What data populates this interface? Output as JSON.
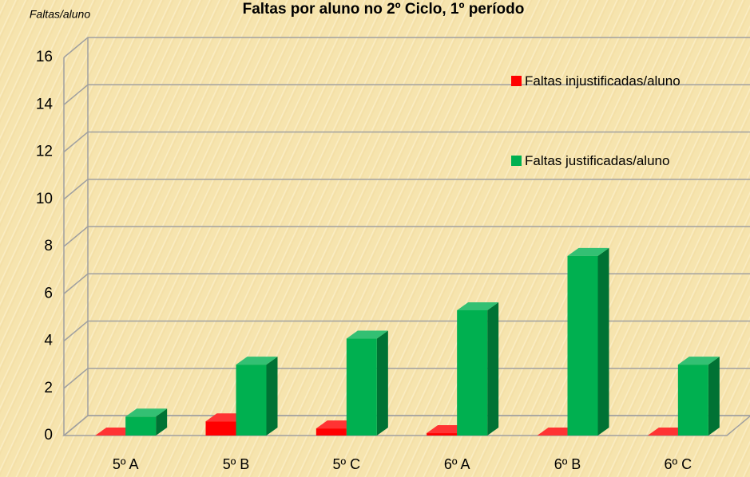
{
  "chart_data": {
    "type": "bar3d",
    "title": "Faltas por aluno no 2º Ciclo, 1º período",
    "y_label": "Faltas/aluno",
    "categories": [
      "5º A",
      "5º B",
      "5º C",
      "6º A",
      "6º B",
      "6º C"
    ],
    "series": [
      {
        "name": "Faltas injustificadas/aluno",
        "color": "#ff0000",
        "values": [
          0,
          0.6,
          0.3,
          0.1,
          0,
          0
        ]
      },
      {
        "name": "Faltas justificadas/aluno",
        "color": "#00b050",
        "values": [
          0.8,
          3.0,
          4.1,
          5.3,
          7.6,
          3.0
        ]
      }
    ],
    "ylim": [
      0,
      16
    ],
    "yticks": [
      0,
      2,
      4,
      6,
      8,
      10,
      12,
      14,
      16
    ],
    "grid": true,
    "legend": "right"
  }
}
